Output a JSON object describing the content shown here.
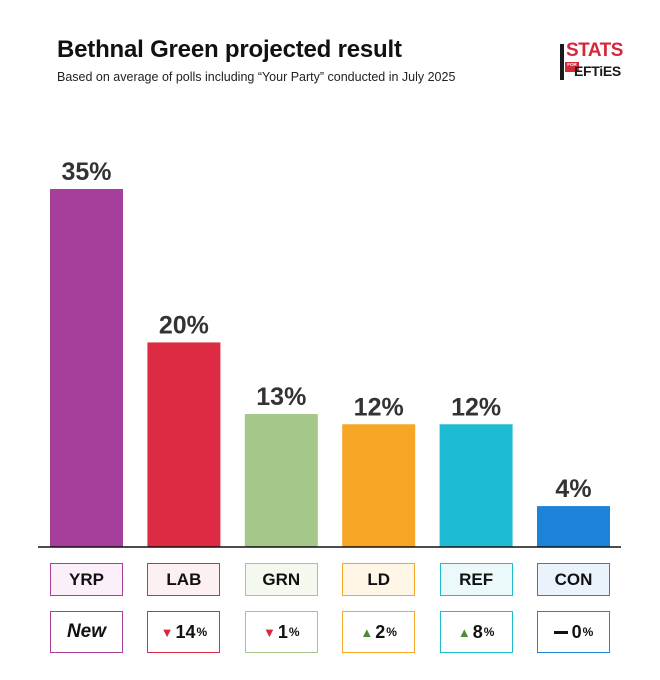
{
  "header": {
    "title": "Bethnal Green projected result",
    "subtitle": "Based on average of polls including “Your Party” conducted in July 2025"
  },
  "logo": {
    "top_text": "STATS",
    "mid_text": "FOR",
    "bottom_text": "EFTiES"
  },
  "chart_data": {
    "type": "bar",
    "title": "Bethnal Green projected result",
    "subtitle": "Based on average of polls including “Your Party” conducted in July 2025",
    "categories": [
      "YRP",
      "LAB",
      "GRN",
      "LD",
      "REF",
      "CON"
    ],
    "values": [
      35,
      20,
      13,
      12,
      12,
      4
    ],
    "value_labels": [
      "35%",
      "20%",
      "13%",
      "12%",
      "12%",
      "4%"
    ],
    "colors": [
      "#a63f9c",
      "#dc2b42",
      "#a5c88a",
      "#f6a624",
      "#1ebcd3",
      "#1d83d8"
    ],
    "label_fills": [
      "#fbf0fa",
      "#fdf0f1",
      "#f3f9ee",
      "#fff6e6",
      "#ecf9fb",
      "#eaf3fc"
    ],
    "changes": [
      {
        "direction": "new",
        "text": "New",
        "unit": ""
      },
      {
        "direction": "down",
        "text": "14",
        "unit": "%"
      },
      {
        "direction": "down",
        "text": "1",
        "unit": "%"
      },
      {
        "direction": "up",
        "text": "2",
        "unit": "%"
      },
      {
        "direction": "up",
        "text": "8",
        "unit": "%"
      },
      {
        "direction": "flat",
        "text": "0",
        "unit": "%"
      }
    ],
    "arrow_colors": {
      "up": "#4e8a35",
      "down": "#d7283b",
      "flat": "#111111"
    },
    "arrow_glyphs": {
      "up": "▲",
      "down": "▼"
    },
    "ylim": [
      0,
      35
    ],
    "xlabel": "",
    "ylabel": "",
    "grid": false
  }
}
